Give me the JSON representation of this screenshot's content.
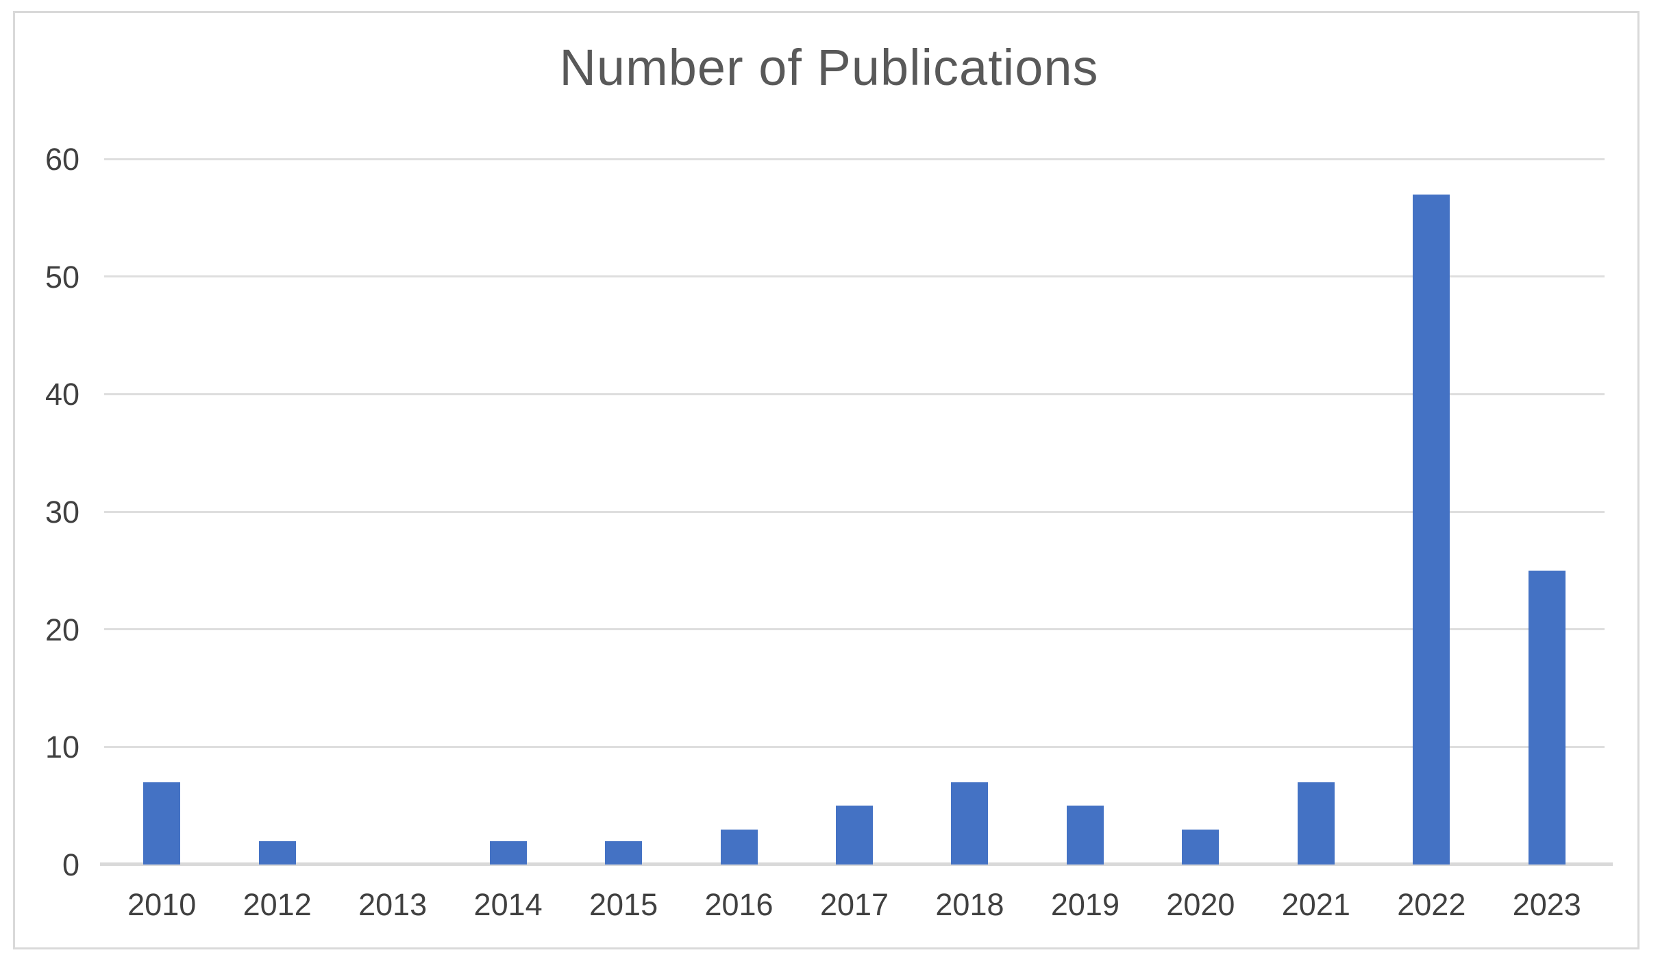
{
  "chart_data": {
    "type": "bar",
    "title": "Number of Publications",
    "categories": [
      "2010",
      "2012",
      "2013",
      "2014",
      "2015",
      "2016",
      "2017",
      "2018",
      "2019",
      "2020",
      "2021",
      "2022",
      "2023"
    ],
    "values": [
      7,
      2,
      0,
      2,
      2,
      3,
      5,
      7,
      5,
      3,
      7,
      57,
      25
    ],
    "xlabel": "",
    "ylabel": "",
    "ylim": [
      0,
      60
    ],
    "yticks": [
      0,
      10,
      20,
      30,
      40,
      50,
      60
    ],
    "grid": "horizontal",
    "legend": "none",
    "colors": {
      "bar": "#4472C4",
      "gridline": "#DEDEDE",
      "axis_line": "#D9D9D9",
      "title": "#595959",
      "tick_label": "#404040",
      "frame_border": "#D9D9D9",
      "background": "#FFFFFF"
    }
  }
}
